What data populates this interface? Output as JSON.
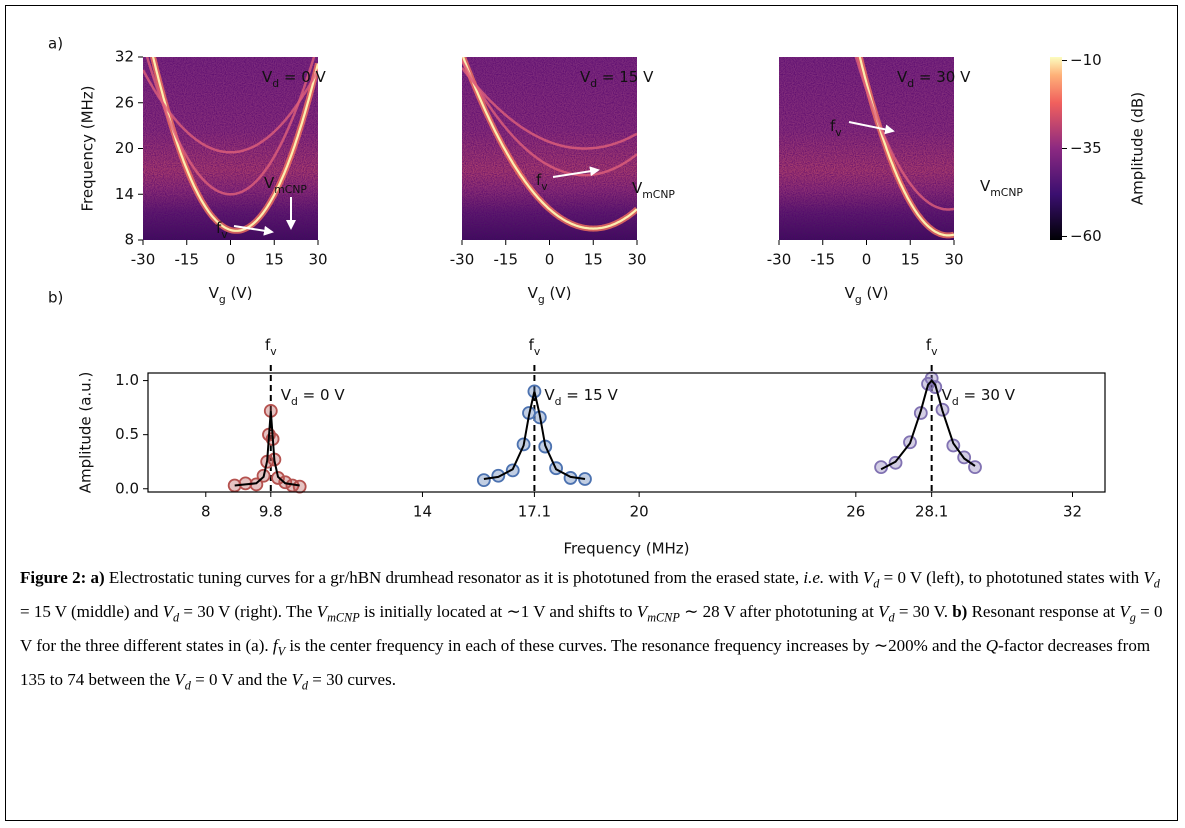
{
  "panel_labels": [
    "a)",
    "b)"
  ],
  "chart_data": [
    {
      "type": "heatmap",
      "xlim": [
        -30,
        30
      ],
      "xticks": [
        -30,
        -15,
        0,
        15,
        30
      ],
      "ylim": [
        8,
        32
      ],
      "yticks": [
        8,
        14,
        20,
        26,
        32
      ],
      "ylabel": "Frequency (MHz)",
      "xlabel": {
        "base": "V",
        "sub": "g",
        "tail": " (V)"
      },
      "state_label": {
        "base": "V",
        "sub": "d",
        "tail": " = 0 V"
      },
      "mcnp_label": {
        "base": "V",
        "sub": "mCNP"
      },
      "fv_label": {
        "base": "f",
        "sub": "v"
      }
    },
    {
      "type": "heatmap",
      "xlim": [
        -30,
        30
      ],
      "xticks": [
        -30,
        -15,
        0,
        15,
        30
      ],
      "ylim": [
        8,
        32
      ],
      "xlabel": {
        "base": "V",
        "sub": "g",
        "tail": " (V)"
      },
      "state_label": {
        "base": "V",
        "sub": "d",
        "tail": " = 15 V"
      },
      "mcnp_label": {
        "base": "V",
        "sub": "mCNP"
      },
      "fv_label": {
        "base": "f",
        "sub": "v"
      }
    },
    {
      "type": "heatmap",
      "xlim": [
        -30,
        30
      ],
      "xticks": [
        -30,
        -15,
        0,
        15,
        30
      ],
      "ylim": [
        8,
        32
      ],
      "xlabel": {
        "base": "V",
        "sub": "g",
        "tail": " (V)"
      },
      "state_label": {
        "base": "V",
        "sub": "d",
        "tail": " = 30 V"
      },
      "mcnp_label": {
        "base": "V",
        "sub": "mCNP"
      },
      "fv_label": {
        "base": "f",
        "sub": "v"
      }
    },
    {
      "type": "scatter",
      "xlim": [
        6.4,
        32.9
      ],
      "xticks": [
        8,
        9.8,
        14,
        17.1,
        20,
        26,
        28.1,
        32
      ],
      "ylim": [
        -0.03,
        1.07
      ],
      "yticks": [
        {
          "value": 0,
          "label": "0.0"
        },
        {
          "value": 0.5,
          "label": "0.5"
        },
        {
          "value": 1,
          "label": "1.0"
        }
      ],
      "xlabel": "Frequency (MHz)",
      "ylabel": "Amplitude (a.u.)",
      "series": [
        {
          "color": "#b5524f",
          "x": [
            8.8,
            9.1,
            9.4,
            9.6,
            9.7,
            9.75,
            9.8,
            9.85,
            9.9,
            10.0,
            10.2,
            10.4,
            10.6
          ],
          "values": [
            0.03,
            0.05,
            0.04,
            0.12,
            0.25,
            0.5,
            0.72,
            0.46,
            0.27,
            0.1,
            0.06,
            0.03,
            0.02
          ]
        },
        {
          "color": "#4c72b0",
          "x": [
            15.7,
            16.1,
            16.5,
            16.8,
            16.95,
            17.1,
            17.25,
            17.4,
            17.7,
            18.1,
            18.5
          ],
          "values": [
            0.08,
            0.12,
            0.17,
            0.41,
            0.7,
            0.9,
            0.66,
            0.39,
            0.19,
            0.1,
            0.09
          ]
        },
        {
          "color": "#8172b2",
          "x": [
            26.7,
            27.1,
            27.5,
            27.8,
            28.0,
            28.1,
            28.2,
            28.4,
            28.7,
            29.0,
            29.3
          ],
          "values": [
            0.2,
            0.24,
            0.43,
            0.7,
            0.97,
            1.02,
            0.94,
            0.73,
            0.4,
            0.29,
            0.2
          ]
        }
      ],
      "fits": [
        {
          "color": "#000000",
          "x": [
            8.8,
            9.1,
            9.4,
            9.6,
            9.7,
            9.75,
            9.8,
            9.85,
            9.9,
            10.0,
            10.2,
            10.4,
            10.6
          ],
          "values": [
            0.03,
            0.04,
            0.05,
            0.11,
            0.26,
            0.49,
            0.72,
            0.49,
            0.26,
            0.11,
            0.05,
            0.04,
            0.03
          ]
        },
        {
          "color": "#000000",
          "x": [
            15.7,
            16.1,
            16.5,
            16.8,
            16.95,
            17.1,
            17.25,
            17.4,
            17.7,
            18.1,
            18.5
          ],
          "values": [
            0.09,
            0.11,
            0.18,
            0.4,
            0.68,
            0.9,
            0.68,
            0.4,
            0.18,
            0.11,
            0.09
          ]
        },
        {
          "color": "#000000",
          "x": [
            26.7,
            27.1,
            27.5,
            27.8,
            28.0,
            28.1,
            28.2,
            28.4,
            28.7,
            29.0,
            29.3
          ],
          "values": [
            0.18,
            0.25,
            0.42,
            0.72,
            0.96,
            1.0,
            0.96,
            0.72,
            0.42,
            0.28,
            0.21
          ]
        }
      ],
      "peaks": [
        {
          "x": 9.8,
          "label": {
            "base": "f",
            "sub": "v"
          },
          "state": {
            "base": "V",
            "sub": "d",
            "tail": " = 0 V"
          }
        },
        {
          "x": 17.1,
          "label": {
            "base": "f",
            "sub": "v"
          },
          "state": {
            "base": "V",
            "sub": "d",
            "tail": " = 15 V"
          }
        },
        {
          "x": 28.1,
          "label": {
            "base": "f",
            "sub": "v"
          },
          "state": {
            "base": "V",
            "sub": "d",
            "tail": " = 30 V"
          }
        }
      ]
    }
  ],
  "colorbar": {
    "label": "Amplitude (dB)",
    "lim": [
      -61,
      -9
    ],
    "ticks": [
      {
        "value": -10,
        "label": "−10"
      },
      {
        "value": -35,
        "label": "−35"
      },
      {
        "value": -60,
        "label": "−60"
      }
    ]
  },
  "caption": {
    "segments": [
      {
        "text": "Figure 2: a)",
        "style": "b"
      },
      {
        "text": " Electrostatic tuning curves for a gr/hBN drumhead resonator as it is phototuned from the erased state, ",
        "style": "r"
      },
      {
        "text": "i.e.",
        "style": "i"
      },
      {
        "text": " with ",
        "style": "r"
      },
      {
        "text": "V",
        "style": "m"
      },
      {
        "text": "d",
        "style": "s"
      },
      {
        "text": " = 0 V (left), to phototuned states with ",
        "style": "r"
      },
      {
        "text": "V",
        "style": "m"
      },
      {
        "text": "d",
        "style": "s"
      },
      {
        "text": " = 15 V (middle) and ",
        "style": "r"
      },
      {
        "text": "V",
        "style": "m"
      },
      {
        "text": "d",
        "style": "s"
      },
      {
        "text": " = 30 V (right). The ",
        "style": "r"
      },
      {
        "text": "V",
        "style": "m"
      },
      {
        "text": "mCNP",
        "style": "s"
      },
      {
        "text": " is initially located at ∼1 V and shifts to ",
        "style": "r"
      },
      {
        "text": "V",
        "style": "m"
      },
      {
        "text": "mCNP",
        "style": "s"
      },
      {
        "text": " ∼ 28 V after phototuning at ",
        "style": "r"
      },
      {
        "text": "V",
        "style": "m"
      },
      {
        "text": "d",
        "style": "s"
      },
      {
        "text": " = 30 V. ",
        "style": "r"
      },
      {
        "text": "b)",
        "style": "b"
      },
      {
        "text": " Resonant response at ",
        "style": "r"
      },
      {
        "text": "V",
        "style": "m"
      },
      {
        "text": "g",
        "style": "s"
      },
      {
        "text": " = 0 V for the three different states in (a). ",
        "style": "r"
      },
      {
        "text": "f",
        "style": "m"
      },
      {
        "text": "V",
        "style": "s"
      },
      {
        "text": " is the center frequency in each of these curves. The resonance frequency increases by ∼200% and the ",
        "style": "r"
      },
      {
        "text": "Q",
        "style": "m"
      },
      {
        "text": "-factor decreases from 135 to 74 between the ",
        "style": "r"
      },
      {
        "text": "V",
        "style": "m"
      },
      {
        "text": "d",
        "style": "s"
      },
      {
        "text": " = 0 V and the ",
        "style": "r"
      },
      {
        "text": "V",
        "style": "m"
      },
      {
        "text": "d",
        "style": "s"
      },
      {
        "text": " = 30 curves.",
        "style": "r"
      }
    ]
  }
}
